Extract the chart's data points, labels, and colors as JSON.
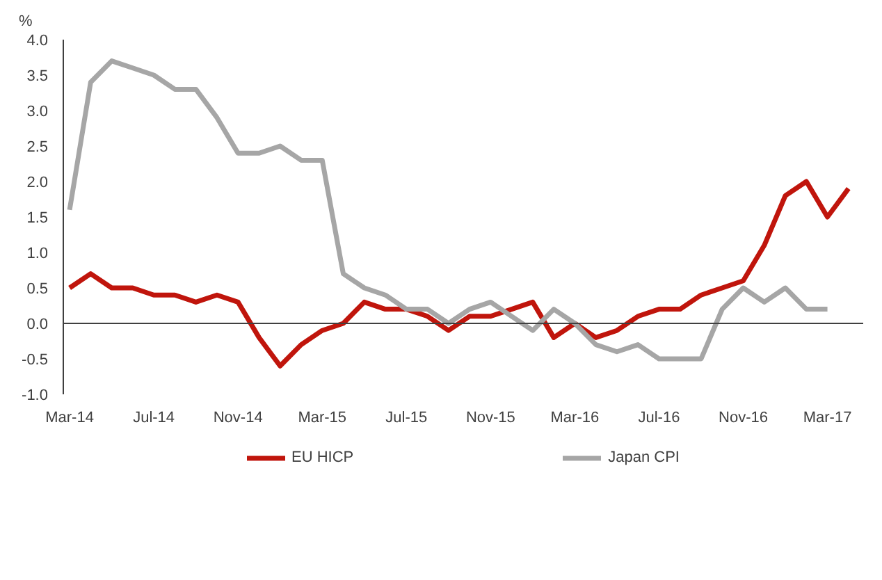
{
  "chart_data": {
    "type": "line",
    "ylabel": "%",
    "categories": [
      "Mar-14",
      null,
      null,
      null,
      "Jul-14",
      null,
      null,
      null,
      "Nov-14",
      null,
      null,
      null,
      "Mar-15",
      null,
      null,
      null,
      "Jul-15",
      null,
      null,
      null,
      "Nov-15",
      null,
      null,
      null,
      "Mar-16",
      null,
      null,
      null,
      "Jul-16",
      null,
      null,
      null,
      "Nov-16",
      null,
      null,
      null,
      "Mar-17",
      null
    ],
    "series": [
      {
        "name": "EU HICP",
        "color": "#c0150c",
        "values": [
          0.5,
          0.7,
          0.5,
          0.5,
          0.4,
          0.4,
          0.3,
          0.4,
          0.3,
          -0.2,
          -0.6,
          -0.3,
          -0.1,
          0.0,
          0.3,
          0.2,
          0.2,
          0.1,
          -0.1,
          0.1,
          0.1,
          0.2,
          0.3,
          -0.2,
          0.0,
          -0.2,
          -0.1,
          0.1,
          0.2,
          0.2,
          0.4,
          0.5,
          0.6,
          1.1,
          1.8,
          2.0,
          1.5,
          1.9
        ]
      },
      {
        "name": "Japan CPI",
        "color": "#a6a6a6",
        "values": [
          1.6,
          3.4,
          3.7,
          3.6,
          3.5,
          3.3,
          3.3,
          2.9,
          2.4,
          2.4,
          2.5,
          2.3,
          2.3,
          0.7,
          0.5,
          0.4,
          0.2,
          0.2,
          0.0,
          0.2,
          0.3,
          0.1,
          -0.1,
          0.2,
          0.0,
          -0.3,
          -0.4,
          -0.3,
          -0.5,
          -0.5,
          -0.5,
          0.2,
          0.5,
          0.3,
          0.5,
          0.2,
          0.2,
          null
        ]
      }
    ],
    "ylim": [
      -1,
      4
    ],
    "yticks": [
      {
        "value": -1,
        "label": "-1.0"
      },
      {
        "value": -0.5,
        "label": "-0.5"
      },
      {
        "value": 0,
        "label": "0.0"
      },
      {
        "value": 0.5,
        "label": "0.5"
      },
      {
        "value": 1,
        "label": "1.0"
      },
      {
        "value": 1.5,
        "label": "1.5"
      },
      {
        "value": 2,
        "label": "2.0"
      },
      {
        "value": 2.5,
        "label": "2.5"
      },
      {
        "value": 3,
        "label": "3.0"
      },
      {
        "value": 3.5,
        "label": "3.5"
      },
      {
        "value": 4,
        "label": "4.0"
      }
    ],
    "ref_lines": [
      {
        "axis": "y",
        "value": 0,
        "color": "#404040"
      }
    ],
    "grid": false,
    "legend": "bottom",
    "line_style": "solid",
    "marker": "none"
  }
}
